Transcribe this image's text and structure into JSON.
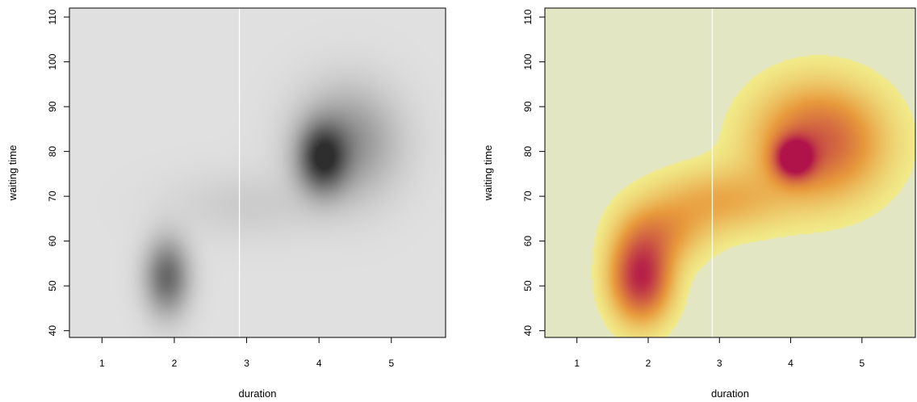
{
  "chart_data": [
    {
      "type": "heatmap",
      "title": "",
      "xlabel": "duration",
      "ylabel": "waiting time",
      "xlim": [
        0.55,
        5.75
      ],
      "ylim": [
        38.5,
        112
      ],
      "xticks": [
        1,
        2,
        3,
        4,
        5
      ],
      "yticks": [
        40,
        50,
        60,
        70,
        80,
        90,
        100,
        110
      ],
      "vline": 2.9,
      "colors": {
        "background": "#e0e0e0",
        "density": "#2e2e2e",
        "vline": "#ffffff"
      },
      "density_components": [
        {
          "x": 1.9,
          "y": 52,
          "sx": 0.2,
          "sy": 5.5,
          "weight": 0.4
        },
        {
          "x": 4.05,
          "y": 78.5,
          "sx": 0.22,
          "sy": 5.0,
          "weight": 0.55
        },
        {
          "x": 4.4,
          "y": 82,
          "sx": 0.45,
          "sy": 8.0,
          "weight": 0.25
        },
        {
          "x": 3.0,
          "y": 68,
          "sx": 0.7,
          "sy": 5.0,
          "weight": 0.05
        }
      ]
    },
    {
      "type": "heatmap",
      "title": "",
      "xlabel": "duration",
      "ylabel": "waiting time",
      "xlim": [
        0.55,
        5.75
      ],
      "ylim": [
        38.5,
        112
      ],
      "xticks": [
        1,
        2,
        3,
        4,
        5
      ],
      "yticks": [
        40,
        50,
        60,
        70,
        80,
        90,
        100,
        110
      ],
      "vline": 2.9,
      "colors": {
        "background": "#e3e6c2",
        "low": "#f1eb8a",
        "mid": "#e89a3c",
        "high": "#b0124a",
        "vline": "#ffffff"
      },
      "density_components": [
        {
          "x": 1.9,
          "y": 52,
          "sx": 0.28,
          "sy": 6.5,
          "weight": 0.55
        },
        {
          "x": 4.05,
          "y": 78.5,
          "sx": 0.18,
          "sy": 3.0,
          "weight": 0.6
        },
        {
          "x": 4.4,
          "y": 82,
          "sx": 0.6,
          "sy": 8.5,
          "weight": 0.4
        },
        {
          "x": 3.0,
          "y": 69,
          "sx": 0.6,
          "sy": 5.0,
          "weight": 0.18
        },
        {
          "x": 2.2,
          "y": 62,
          "sx": 0.4,
          "sy": 5.0,
          "weight": 0.2
        }
      ]
    }
  ]
}
